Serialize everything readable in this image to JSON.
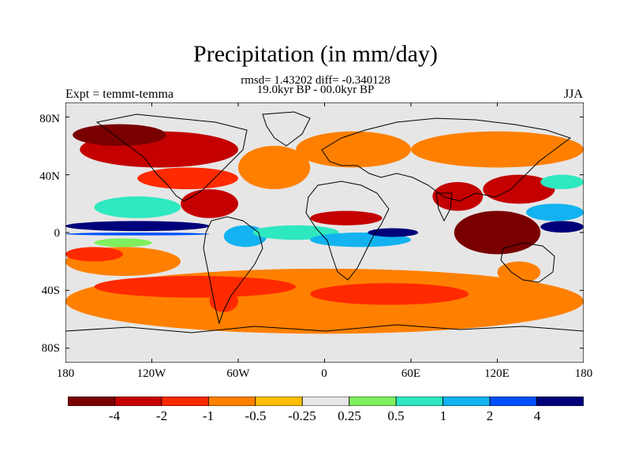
{
  "title": "Precipitation (in mm/day)",
  "stats": "rmsd= 1.43202 diff= -0.340128",
  "period": "19.0kyr BP - 00.0kyr BP",
  "experiment": "Expt = temmt-temma",
  "season": "JJA",
  "colors": {
    "palette": [
      "#7a0000",
      "#c40000",
      "#ff2a00",
      "#ff8000",
      "#ffbf00",
      "#e6e6e6",
      "#7fef5f",
      "#2ee8c0",
      "#12b3f0",
      "#0050ff",
      "#00007a"
    ],
    "land_outline": "#000000",
    "frame": "#000000"
  },
  "chart_data": {
    "type": "heatmap",
    "projection": "cylindrical equidistant",
    "lon_range": [
      -180,
      180
    ],
    "lat_range": [
      -90,
      90
    ],
    "x_tick_labels": [
      "180",
      "120W",
      "60W",
      "0",
      "60E",
      "120E",
      "180"
    ],
    "y_tick_labels": [
      "80N",
      "40N",
      "0",
      "40S",
      "80S"
    ],
    "colorbar_levels": [
      "-4",
      "-2",
      "-1",
      "-0.5",
      "-0.25",
      "0.25",
      "0.5",
      "1",
      "2",
      "4"
    ],
    "regions": [
      {
        "lon": [
          -180,
          180
        ],
        "lat": [
          -70,
          -25
        ],
        "level": 3
      },
      {
        "lon": [
          -160,
          -20
        ],
        "lat": [
          -45,
          -30
        ],
        "level": 2
      },
      {
        "lon": [
          -10,
          100
        ],
        "lat": [
          -50,
          -35
        ],
        "level": 2
      },
      {
        "lon": [
          -180,
          -100
        ],
        "lat": [
          -30,
          -10
        ],
        "level": 3
      },
      {
        "lon": [
          -180,
          -140
        ],
        "lat": [
          -20,
          -10
        ],
        "level": 2
      },
      {
        "lon": [
          -180,
          -80
        ],
        "lat": [
          1,
          8
        ],
        "level": 10
      },
      {
        "lon": [
          -180,
          -80
        ],
        "lat": [
          -2,
          0
        ],
        "level": 9
      },
      {
        "lon": [
          -160,
          -100
        ],
        "lat": [
          10,
          25
        ],
        "level": 7
      },
      {
        "lon": [
          -160,
          -120
        ],
        "lat": [
          -10,
          -4
        ],
        "level": 6
      },
      {
        "lon": [
          -170,
          -60
        ],
        "lat": [
          45,
          70
        ],
        "level": 1
      },
      {
        "lon": [
          -175,
          -110
        ],
        "lat": [
          60,
          75
        ],
        "level": 0
      },
      {
        "lon": [
          -130,
          -60
        ],
        "lat": [
          30,
          45
        ],
        "level": 2
      },
      {
        "lon": [
          -100,
          -60
        ],
        "lat": [
          10,
          30
        ],
        "level": 1
      },
      {
        "lon": [
          -60,
          -10
        ],
        "lat": [
          30,
          60
        ],
        "level": 3
      },
      {
        "lon": [
          -70,
          -40
        ],
        "lat": [
          -10,
          5
        ],
        "level": 8
      },
      {
        "lon": [
          -50,
          10
        ],
        "lat": [
          -5,
          5
        ],
        "level": 7
      },
      {
        "lon": [
          -10,
          60
        ],
        "lat": [
          -10,
          0
        ],
        "level": 8
      },
      {
        "lon": [
          30,
          65
        ],
        "lat": [
          -3,
          3
        ],
        "level": 10
      },
      {
        "lon": [
          -10,
          40
        ],
        "lat": [
          5,
          15
        ],
        "level": 1
      },
      {
        "lon": [
          -20,
          60
        ],
        "lat": [
          45,
          70
        ],
        "level": 3
      },
      {
        "lon": [
          60,
          180
        ],
        "lat": [
          45,
          70
        ],
        "level": 3
      },
      {
        "lon": [
          75,
          110
        ],
        "lat": [
          15,
          35
        ],
        "level": 1
      },
      {
        "lon": [
          110,
          160
        ],
        "lat": [
          20,
          40
        ],
        "level": 1
      },
      {
        "lon": [
          90,
          150
        ],
        "lat": [
          -15,
          15
        ],
        "level": 0
      },
      {
        "lon": [
          150,
          180
        ],
        "lat": [
          0,
          8
        ],
        "level": 10
      },
      {
        "lon": [
          140,
          180
        ],
        "lat": [
          8,
          20
        ],
        "level": 8
      },
      {
        "lon": [
          150,
          180
        ],
        "lat": [
          30,
          40
        ],
        "level": 7
      },
      {
        "lon": [
          120,
          150
        ],
        "lat": [
          -35,
          -20
        ],
        "level": 3
      },
      {
        "lon": [
          -80,
          -60
        ],
        "lat": [
          -55,
          -40
        ],
        "level": 2
      }
    ]
  }
}
